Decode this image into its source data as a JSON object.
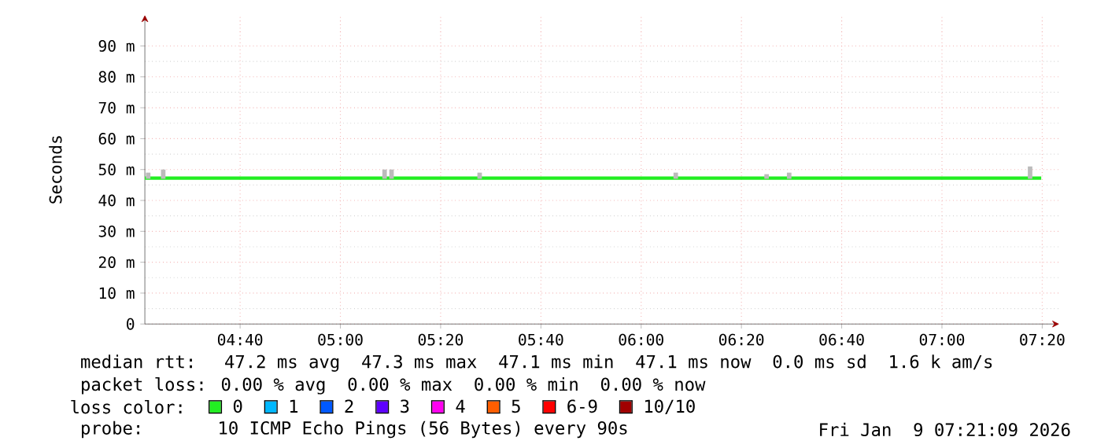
{
  "chart_data": {
    "type": "line",
    "ylabel": "Seconds",
    "xlim": [
      4.35,
      7.39
    ],
    "ylim": [
      0,
      100
    ],
    "xticks": [
      {
        "value": 4.6667,
        "label": "04:40"
      },
      {
        "value": 5,
        "label": "05:00"
      },
      {
        "value": 5.3333,
        "label": "05:20"
      },
      {
        "value": 5.6667,
        "label": "05:40"
      },
      {
        "value": 6,
        "label": "06:00"
      },
      {
        "value": 6.3333,
        "label": "06:20"
      },
      {
        "value": 6.6667,
        "label": "06:40"
      },
      {
        "value": 7,
        "label": "07:00"
      },
      {
        "value": 7.3333,
        "label": "07:20"
      }
    ],
    "yticks": [
      0,
      {
        "value": 10,
        "label": "10 m"
      },
      {
        "value": 20,
        "label": "20 m"
      },
      {
        "value": 30,
        "label": "30 m"
      },
      {
        "value": 40,
        "label": "40 m"
      },
      {
        "value": 50,
        "label": "50 m"
      },
      {
        "value": 60,
        "label": "60 m"
      },
      {
        "value": 70,
        "label": "70 m"
      },
      {
        "value": 80,
        "label": "80 m"
      },
      {
        "value": 90,
        "label": "90 m"
      }
    ],
    "grid": true,
    "legend": "bottom",
    "legend_title": "loss color:",
    "series": [
      {
        "name": "0",
        "color": "#22ee22",
        "x": [
          4.35,
          7.33
        ],
        "values": [
          47.2,
          47.2
        ]
      },
      {
        "name": "1",
        "color": "#00b8ff"
      },
      {
        "name": "2",
        "color": "#0059ff"
      },
      {
        "name": "3",
        "color": "#5e00ff"
      },
      {
        "name": "4",
        "color": "#ff00f0"
      },
      {
        "name": "5",
        "color": "#ff5e00"
      },
      {
        "name": "6-9",
        "color": "#ff0000"
      },
      {
        "name": "10/10",
        "color": "#a10000"
      },
      {
        "type": "bar",
        "color": "#bbbbbb",
        "x": [
          4.361,
          4.411,
          5.147,
          5.17,
          5.463,
          6.115,
          6.417,
          6.492,
          7.293
        ],
        "base": [
          47,
          47,
          47,
          47,
          47,
          47,
          47,
          47,
          47
        ],
        "values": [
          2,
          3,
          3,
          3,
          2,
          2,
          1.5,
          2,
          4
        ]
      }
    ],
    "annotations": [
      "median rtt:  47.2 ms avg  47.3 ms max  47.1 ms min  47.1 ms now  0.0 ms sd  1.6 k am/s",
      "packet loss: 0.00 % avg  0.00 % max  0.00 % min  0.00 % now",
      "probe:",
      "10 ICMP Echo Pings (56 Bytes) every 90s",
      "Fri Jan  9 07:21:09 2026"
    ]
  }
}
